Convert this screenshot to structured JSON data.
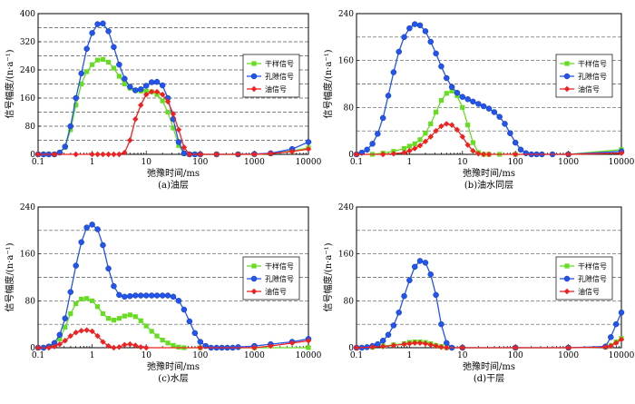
{
  "chart_data": [
    {
      "type": "line",
      "caption": "(a)油层",
      "xlabel": "弛豫时间/ms",
      "ylabel": "信号幅度/(n·a⁻¹)",
      "xscale": "log",
      "xlim": [
        0.1,
        10000
      ],
      "ylim": [
        0,
        400
      ],
      "yticks": [
        0,
        80,
        160,
        240,
        320,
        400
      ],
      "xticks": [
        "0.1",
        "1",
        "10",
        "100",
        "1000",
        "10000"
      ],
      "grid_y_dashed": true,
      "legend_position": "right-middle",
      "series": [
        {
          "name": "干样信号",
          "color": "#66dd22",
          "marker": "square",
          "x": [
            0.1,
            0.126,
            0.158,
            0.2,
            0.251,
            0.316,
            0.398,
            0.501,
            0.631,
            0.794,
            1,
            1.26,
            1.58,
            2,
            2.51,
            3.16,
            3.98,
            5.01,
            6.31,
            7.94,
            10,
            12.6,
            15.8,
            20,
            25.1,
            31.6,
            39.8,
            50.1,
            63.1,
            79.4,
            100,
            200,
            500,
            1000,
            2000,
            5000,
            10000
          ],
          "y": [
            0,
            0,
            0,
            0,
            5,
            20,
            70,
            140,
            200,
            235,
            255,
            268,
            270,
            262,
            245,
            222,
            200,
            188,
            182,
            180,
            180,
            178,
            170,
            152,
            120,
            75,
            25,
            2,
            0,
            0,
            0,
            0,
            0,
            0,
            2,
            10,
            18
          ]
        },
        {
          "name": "孔隙信号",
          "color": "#2255ee",
          "marker": "circle",
          "x": [
            0.1,
            0.126,
            0.158,
            0.2,
            0.251,
            0.316,
            0.398,
            0.501,
            0.631,
            0.794,
            1,
            1.26,
            1.58,
            2,
            2.51,
            3.16,
            3.98,
            5.01,
            6.31,
            7.94,
            10,
            12.6,
            15.8,
            20,
            25.1,
            31.6,
            39.8,
            50.1,
            63.1,
            79.4,
            100,
            200,
            500,
            1000,
            2000,
            5000,
            10000
          ],
          "y": [
            0,
            0,
            0,
            0,
            5,
            22,
            80,
            160,
            230,
            300,
            345,
            370,
            372,
            350,
            305,
            255,
            215,
            192,
            182,
            185,
            195,
            205,
            206,
            196,
            160,
            100,
            35,
            3,
            0,
            0,
            0,
            0,
            0,
            1,
            3,
            15,
            35
          ]
        },
        {
          "name": "油信号",
          "color": "#ee2222",
          "marker": "diamond",
          "x": [
            0.1,
            0.2,
            0.5,
            1,
            1.26,
            1.58,
            2,
            2.51,
            3.16,
            3.98,
            5.01,
            6.31,
            7.94,
            10,
            12.6,
            15.8,
            20,
            25.1,
            31.6,
            39.8,
            50.1,
            63.1,
            100,
            200,
            500,
            1000,
            2000,
            5000,
            10000
          ],
          "y": [
            0,
            0,
            0,
            0,
            0,
            0,
            0,
            0,
            0,
            5,
            40,
            100,
            140,
            170,
            178,
            178,
            170,
            150,
            115,
            70,
            20,
            0,
            0,
            0,
            0,
            0,
            2,
            8,
            15
          ]
        }
      ]
    },
    {
      "type": "line",
      "caption": "(b)油水同层",
      "xlabel": "弛豫时间/ms",
      "ylabel": "信号幅度/(n·a⁻¹)",
      "xscale": "log",
      "xlim": [
        0.1,
        10000
      ],
      "ylim": [
        0,
        240
      ],
      "yticks": [
        0,
        80,
        160,
        240
      ],
      "xticks": [
        "0.1",
        "1",
        "10",
        "100",
        "1000",
        "10000"
      ],
      "grid_y_dashed": true,
      "legend_position": "right-middle",
      "series": [
        {
          "name": "干样信号",
          "color": "#66dd22",
          "marker": "square",
          "x": [
            0.1,
            0.2,
            0.316,
            0.501,
            0.794,
            1,
            1.26,
            1.58,
            2,
            2.51,
            3.16,
            3.98,
            5.01,
            6.31,
            7.94,
            10,
            12.6,
            15.8,
            20,
            25.1,
            31.6,
            50.1,
            100,
            1000,
            10000
          ],
          "y": [
            0,
            0,
            2,
            5,
            10,
            14,
            18,
            25,
            36,
            52,
            72,
            92,
            104,
            108,
            100,
            80,
            50,
            20,
            3,
            0,
            0,
            0,
            0,
            0,
            8
          ]
        },
        {
          "name": "孔隙信号",
          "color": "#2255ee",
          "marker": "circle",
          "x": [
            0.1,
            0.126,
            0.158,
            0.2,
            0.251,
            0.316,
            0.398,
            0.501,
            0.631,
            0.794,
            1,
            1.26,
            1.58,
            2,
            2.51,
            3.16,
            3.98,
            5.01,
            6.31,
            7.94,
            10,
            12.6,
            15.8,
            20,
            25.1,
            31.6,
            39.8,
            50.1,
            63.1,
            79.4,
            100,
            126,
            158,
            200,
            251,
            316,
            500,
            1000,
            10000
          ],
          "y": [
            0,
            3,
            8,
            18,
            35,
            62,
            100,
            140,
            175,
            200,
            215,
            222,
            220,
            210,
            192,
            172,
            150,
            130,
            115,
            105,
            98,
            94,
            90,
            86,
            82,
            78,
            72,
            64,
            52,
            36,
            20,
            8,
            2,
            0,
            0,
            0,
            0,
            0,
            5
          ]
        },
        {
          "name": "油信号",
          "color": "#ee2222",
          "marker": "diamond",
          "x": [
            0.1,
            0.316,
            0.501,
            0.794,
            1,
            1.26,
            1.58,
            2,
            2.51,
            3.16,
            3.98,
            5.01,
            6.31,
            7.94,
            10,
            12.6,
            15.8,
            20,
            25.1,
            31.6,
            100,
            1000,
            10000
          ],
          "y": [
            0,
            0,
            1,
            3,
            6,
            10,
            15,
            22,
            30,
            40,
            48,
            52,
            50,
            42,
            30,
            16,
            6,
            1,
            0,
            0,
            0,
            0,
            2
          ]
        }
      ]
    },
    {
      "type": "line",
      "caption": "(c)水层",
      "xlabel": "弛豫时间/ms",
      "ylabel": "信号幅度/(n·a⁻¹)",
      "xscale": "log",
      "xlim": [
        0.1,
        10000
      ],
      "ylim": [
        0,
        240
      ],
      "yticks": [
        0,
        80,
        160,
        240
      ],
      "xticks": [
        "0.1",
        "1",
        "10",
        "100",
        "1000",
        "10000"
      ],
      "grid_y_dashed": true,
      "legend_position": "right-middle",
      "series": [
        {
          "name": "干样信号",
          "color": "#66dd22",
          "marker": "square",
          "x": [
            0.1,
            0.126,
            0.158,
            0.2,
            0.251,
            0.316,
            0.398,
            0.501,
            0.631,
            0.794,
            1,
            1.26,
            1.58,
            2,
            2.51,
            3.16,
            3.98,
            5.01,
            6.31,
            7.94,
            10,
            12.6,
            15.8,
            20,
            25.1,
            31.6,
            39.8,
            50.1,
            100,
            1000,
            10000
          ],
          "y": [
            0,
            0,
            2,
            6,
            15,
            35,
            58,
            75,
            83,
            84,
            80,
            70,
            58,
            50,
            47,
            50,
            54,
            56,
            53,
            46,
            37,
            28,
            20,
            13,
            8,
            4,
            1,
            0,
            0,
            0,
            0
          ]
        },
        {
          "name": "孔隙信号",
          "color": "#2255ee",
          "marker": "circle",
          "x": [
            0.1,
            0.126,
            0.158,
            0.2,
            0.251,
            0.316,
            0.398,
            0.501,
            0.631,
            0.794,
            1,
            1.26,
            1.58,
            2,
            2.51,
            3.16,
            3.98,
            5.01,
            6.31,
            7.94,
            10,
            12.6,
            15.8,
            20,
            25.1,
            31.6,
            39.8,
            50.1,
            63.1,
            79.4,
            100,
            126,
            158,
            200,
            251,
            316,
            398,
            501,
            1000,
            2000,
            5000,
            10000
          ],
          "y": [
            0,
            0,
            2,
            8,
            22,
            50,
            95,
            140,
            180,
            205,
            210,
            202,
            175,
            135,
            105,
            90,
            87,
            88,
            89,
            89,
            89,
            89,
            89,
            89,
            89,
            87,
            80,
            65,
            45,
            25,
            10,
            3,
            0,
            0,
            0,
            0,
            0,
            1,
            3,
            6,
            10,
            15
          ]
        },
        {
          "name": "油信号",
          "color": "#ee2222",
          "marker": "diamond",
          "x": [
            0.1,
            0.158,
            0.2,
            0.251,
            0.316,
            0.398,
            0.501,
            0.631,
            0.794,
            1,
            1.26,
            1.58,
            2,
            2.51,
            3.16,
            3.98,
            5.01,
            6.31,
            7.94,
            10,
            100,
            1000,
            2000,
            5000,
            10000
          ],
          "y": [
            0,
            0,
            2,
            6,
            12,
            20,
            26,
            29,
            30,
            28,
            20,
            10,
            3,
            0,
            1,
            5,
            6,
            4,
            1,
            0,
            0,
            0,
            3,
            8,
            12
          ]
        }
      ]
    },
    {
      "type": "line",
      "caption": "(d)干层",
      "xlabel": "弛豫时间/ms",
      "ylabel": "信号幅度/(n·a⁻¹)",
      "xscale": "log",
      "xlim": [
        0.1,
        10000
      ],
      "ylim": [
        0,
        240
      ],
      "yticks": [
        0,
        80,
        160,
        240
      ],
      "xticks": [
        "0.1",
        "1",
        "10",
        "100",
        "1000",
        "10000"
      ],
      "grid_y_dashed": true,
      "legend_position": "right-middle",
      "series": [
        {
          "name": "干样信号",
          "color": "#66dd22",
          "marker": "square",
          "x": [
            0.1,
            0.2,
            0.316,
            0.501,
            0.794,
            1,
            1.26,
            1.58,
            2,
            2.51,
            3.16,
            3.98,
            5.01,
            10,
            100,
            1000,
            5000,
            6310,
            7943,
            10000
          ],
          "y": [
            0,
            1,
            3,
            5,
            7,
            9,
            10,
            10,
            9,
            7,
            4,
            2,
            0,
            0,
            0,
            0,
            1,
            4,
            10,
            16
          ]
        },
        {
          "name": "孔隙信号",
          "color": "#2255ee",
          "marker": "circle",
          "x": [
            0.1,
            0.126,
            0.158,
            0.2,
            0.251,
            0.316,
            0.398,
            0.501,
            0.631,
            0.794,
            1,
            1.26,
            1.58,
            2,
            2.51,
            3.16,
            3.98,
            5.01,
            6.31,
            10,
            100,
            1000,
            5000,
            6310,
            7943,
            10000
          ],
          "y": [
            0,
            0,
            1,
            3,
            6,
            12,
            22,
            38,
            60,
            88,
            115,
            138,
            148,
            145,
            125,
            90,
            40,
            8,
            0,
            0,
            0,
            0,
            2,
            18,
            40,
            60
          ]
        },
        {
          "name": "油信号",
          "color": "#ee2222",
          "marker": "diamond",
          "x": [
            0.1,
            0.2,
            0.316,
            0.501,
            0.794,
            1,
            1.26,
            1.58,
            2,
            2.51,
            3.16,
            3.98,
            5.01,
            10,
            100,
            1000,
            5000,
            6310,
            7943,
            10000
          ],
          "y": [
            0,
            1,
            2,
            4,
            6,
            7,
            8,
            8,
            7,
            5,
            3,
            1,
            0,
            0,
            0,
            0,
            1,
            3,
            8,
            14
          ]
        }
      ]
    }
  ]
}
